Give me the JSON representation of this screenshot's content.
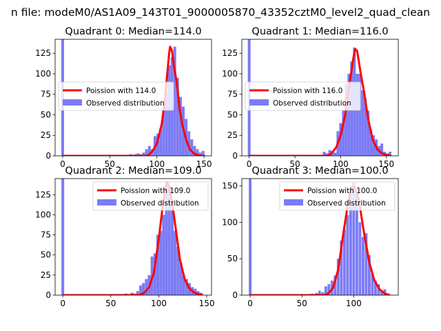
{
  "figure": {
    "suptitle": "n file: modeM0/AS1A09_143T01_9000005870_43352cztM0_level2_quad_clean",
    "colors": {
      "fit": "#ff0000",
      "hist": "#7b7bf5",
      "text": "#000000"
    }
  },
  "chart_data": [
    {
      "type": "bar",
      "title": "Quadrant 0: Median=114.0",
      "xlabel": "",
      "ylabel": "",
      "xlim": [
        -8,
        158
      ],
      "ylim": [
        0,
        142
      ],
      "xticks": [
        0,
        50,
        100,
        150
      ],
      "yticks": [
        0,
        25,
        50,
        75,
        100,
        125
      ],
      "legend_loc": "center-left",
      "series": [
        {
          "name": "Poission with 114.0",
          "kind": "line",
          "mean": 114.0,
          "peak": 135,
          "x": [
            0,
            90,
            95,
            100,
            105,
            108,
            111,
            113,
            114,
            116,
            118,
            121,
            124,
            127,
            131,
            135,
            139,
            143,
            148,
            151
          ],
          "y": [
            0,
            0,
            5,
            15,
            38,
            62,
            100,
            125,
            133,
            128,
            110,
            90,
            58,
            38,
            20,
            8,
            3,
            1,
            0,
            0
          ]
        },
        {
          "name": "Observed distribution",
          "kind": "hist",
          "bin_width": 2.9,
          "bins": [
            [
              0,
              142
            ],
            [
              57,
              1
            ],
            [
              66,
              1
            ],
            [
              72,
              2
            ],
            [
              77,
              2
            ],
            [
              80,
              3
            ],
            [
              83,
              2
            ],
            [
              86,
              4
            ],
            [
              89,
              8
            ],
            [
              92,
              12
            ],
            [
              95,
              8
            ],
            [
              98,
              24
            ],
            [
              101,
              27
            ],
            [
              104,
              33
            ],
            [
              107,
              58
            ],
            [
              110,
              78
            ],
            [
              113,
              110
            ],
            [
              116,
              120
            ],
            [
              119,
              133
            ],
            [
              122,
              95
            ],
            [
              125,
              72
            ],
            [
              128,
              60
            ],
            [
              131,
              45
            ],
            [
              134,
              30
            ],
            [
              137,
              20
            ],
            [
              140,
              12
            ],
            [
              143,
              8
            ],
            [
              146,
              4
            ],
            [
              149,
              6
            ]
          ]
        }
      ]
    },
    {
      "type": "bar",
      "title": "Quadrant 1: Median=116.0",
      "xlabel": "",
      "ylabel": "",
      "xlim": [
        -8,
        163
      ],
      "ylim": [
        0,
        142
      ],
      "xticks": [
        0,
        50,
        100,
        150
      ],
      "yticks": [
        0,
        25,
        50,
        75,
        100,
        125
      ],
      "legend_loc": "center-left",
      "series": [
        {
          "name": "Poission with 116.0",
          "kind": "line",
          "mean": 116.0,
          "peak": 133,
          "x": [
            0,
            86,
            90,
            95,
            100,
            105,
            110,
            114,
            116,
            118,
            122,
            126,
            130,
            135,
            140,
            145,
            150,
            155
          ],
          "y": [
            0,
            0,
            3,
            10,
            25,
            50,
            90,
            120,
            130,
            128,
            100,
            75,
            45,
            20,
            8,
            3,
            1,
            0
          ]
        },
        {
          "name": "Observed distribution",
          "kind": "hist",
          "bin_width": 3.0,
          "bins": [
            [
              0,
              142
            ],
            [
              66,
              1
            ],
            [
              72,
              1
            ],
            [
              78,
              1
            ],
            [
              82,
              5
            ],
            [
              85,
              3
            ],
            [
              88,
              7
            ],
            [
              91,
              6
            ],
            [
              94,
              4
            ],
            [
              97,
              30
            ],
            [
              100,
              40
            ],
            [
              103,
              55
            ],
            [
              106,
              88
            ],
            [
              109,
              100
            ],
            [
              112,
              115
            ],
            [
              115,
              132
            ],
            [
              118,
              100
            ],
            [
              121,
              100
            ],
            [
              124,
              80
            ],
            [
              127,
              70
            ],
            [
              130,
              55
            ],
            [
              133,
              32
            ],
            [
              136,
              25
            ],
            [
              139,
              20
            ],
            [
              142,
              12
            ],
            [
              145,
              15
            ],
            [
              148,
              5
            ],
            [
              151,
              3
            ],
            [
              154,
              5
            ]
          ]
        }
      ]
    },
    {
      "type": "bar",
      "title": "Quadrant 2: Median=109.0",
      "xlabel": "",
      "ylabel": "",
      "xlim": [
        -8,
        155
      ],
      "ylim": [
        0,
        145
      ],
      "xticks": [
        0,
        50,
        100,
        150
      ],
      "yticks": [
        0,
        25,
        50,
        75,
        100,
        125
      ],
      "legend_loc": "upper-right",
      "series": [
        {
          "name": "Poission with 109.0",
          "kind": "line",
          "mean": 109.0,
          "peak": 142,
          "x": [
            0,
            80,
            85,
            90,
            95,
            100,
            104,
            107,
            109,
            111,
            114,
            118,
            122,
            127,
            132,
            137,
            142,
            146
          ],
          "y": [
            0,
            0,
            3,
            10,
            28,
            70,
            110,
            135,
            140,
            135,
            115,
            80,
            45,
            20,
            8,
            3,
            1,
            0
          ]
        },
        {
          "name": "Observed distribution",
          "kind": "hist",
          "bin_width": 2.9,
          "bins": [
            [
              0,
              145
            ],
            [
              66,
              2
            ],
            [
              72,
              3
            ],
            [
              75,
              2
            ],
            [
              78,
              5
            ],
            [
              81,
              12
            ],
            [
              84,
              15
            ],
            [
              87,
              20
            ],
            [
              90,
              25
            ],
            [
              93,
              48
            ],
            [
              96,
              52
            ],
            [
              99,
              75
            ],
            [
              102,
              80
            ],
            [
              105,
              100
            ],
            [
              108,
              140
            ],
            [
              111,
              135
            ],
            [
              114,
              110
            ],
            [
              117,
              80
            ],
            [
              120,
              60
            ],
            [
              123,
              40
            ],
            [
              126,
              25
            ],
            [
              129,
              20
            ],
            [
              132,
              15
            ],
            [
              135,
              10
            ],
            [
              138,
              8
            ],
            [
              141,
              5
            ],
            [
              144,
              3
            ]
          ]
        }
      ]
    },
    {
      "type": "bar",
      "title": "Quadrant 3: Median=100.0",
      "xlabel": "",
      "ylabel": "",
      "xlim": [
        -8,
        143
      ],
      "ylim": [
        0,
        160
      ],
      "xticks": [
        0,
        50,
        100
      ],
      "yticks": [
        0,
        50,
        100,
        150
      ],
      "legend_loc": "upper-right",
      "series": [
        {
          "name": "Poission with 100.0",
          "kind": "line",
          "mean": 100.0,
          "peak": 152,
          "x": [
            0,
            72,
            76,
            80,
            85,
            90,
            95,
            98,
            100,
            102,
            105,
            110,
            115,
            120,
            125,
            130,
            135
          ],
          "y": [
            0,
            0,
            3,
            10,
            35,
            85,
            130,
            148,
            150,
            145,
            130,
            85,
            45,
            20,
            8,
            2,
            0
          ]
        },
        {
          "name": "Observed distribution",
          "kind": "hist",
          "bin_width": 2.6,
          "bins": [
            [
              0,
              160
            ],
            [
              55,
              1
            ],
            [
              60,
              2
            ],
            [
              64,
              3
            ],
            [
              67,
              6
            ],
            [
              70,
              4
            ],
            [
              73,
              12
            ],
            [
              76,
              15
            ],
            [
              79,
              20
            ],
            [
              82,
              27
            ],
            [
              85,
              50
            ],
            [
              88,
              75
            ],
            [
              91,
              90
            ],
            [
              94,
              110
            ],
            [
              97,
              145
            ],
            [
              100,
              155
            ],
            [
              103,
              140
            ],
            [
              106,
              100
            ],
            [
              109,
              80
            ],
            [
              112,
              85
            ],
            [
              115,
              55
            ],
            [
              118,
              30
            ],
            [
              121,
              20
            ],
            [
              124,
              15
            ],
            [
              127,
              5
            ],
            [
              130,
              8
            ]
          ]
        }
      ]
    }
  ]
}
